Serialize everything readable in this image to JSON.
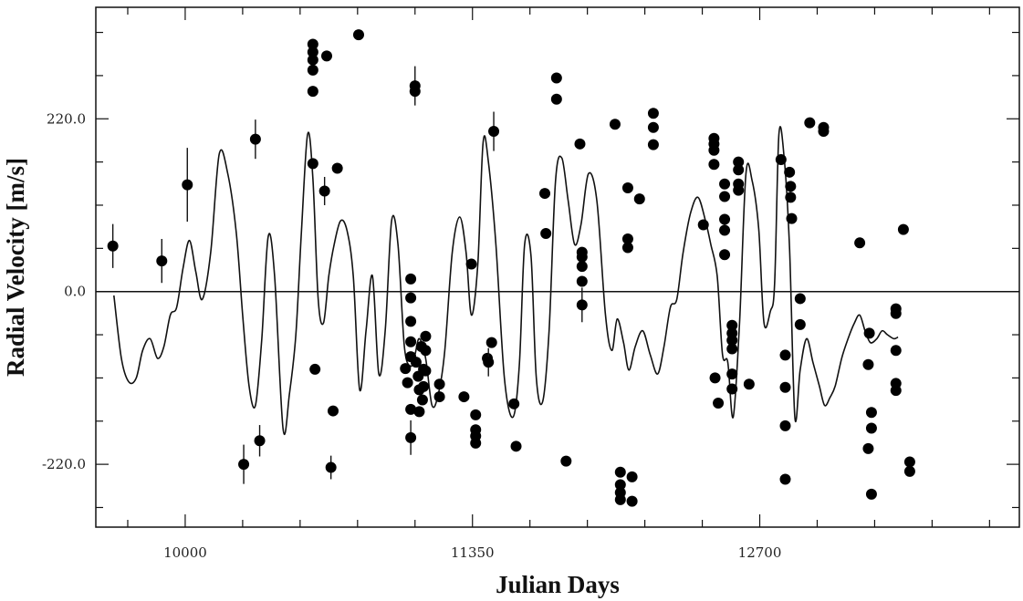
{
  "chart_data": {
    "type": "scatter",
    "title": "",
    "xlabel": "Julian Days",
    "ylabel": "Radial Velocity [m/s]",
    "xlim": [
      9580,
      13920
    ],
    "ylim": [
      -300,
      362
    ],
    "x_ticks": [
      10000,
      11350,
      12700
    ],
    "x_tick_labels": [
      "10000",
      "11350",
      "12700"
    ],
    "y_ticks": [
      220,
      0,
      -220
    ],
    "y_tick_labels": [
      "220.0",
      "0.0",
      "-220.0"
    ],
    "zero_line": 0,
    "grid": false,
    "points": [
      {
        "x": 9660,
        "y": 58,
        "err": 28
      },
      {
        "x": 9890,
        "y": 39,
        "err": 28
      },
      {
        "x": 10010,
        "y": 136,
        "err": 47
      },
      {
        "x": 10275,
        "y": -220,
        "err": 25
      },
      {
        "x": 10330,
        "y": 194,
        "err": 25
      },
      {
        "x": 10350,
        "y": -190,
        "err": 20
      },
      {
        "x": 10600,
        "y": 315
      },
      {
        "x": 10600,
        "y": 305
      },
      {
        "x": 10600,
        "y": 295
      },
      {
        "x": 10600,
        "y": 282
      },
      {
        "x": 10600,
        "y": 255
      },
      {
        "x": 10600,
        "y": 163
      },
      {
        "x": 10610,
        "y": -99
      },
      {
        "x": 10655,
        "y": 128,
        "err": 18
      },
      {
        "x": 10665,
        "y": 300
      },
      {
        "x": 10685,
        "y": -224,
        "err": 15
      },
      {
        "x": 10695,
        "y": -152
      },
      {
        "x": 10715,
        "y": 157
      },
      {
        "x": 10815,
        "y": 327
      },
      {
        "x": 11035,
        "y": -98
      },
      {
        "x": 11045,
        "y": -116
      },
      {
        "x": 11060,
        "y": 16
      },
      {
        "x": 11060,
        "y": -8
      },
      {
        "x": 11060,
        "y": -38
      },
      {
        "x": 11060,
        "y": -64
      },
      {
        "x": 11060,
        "y": -83
      },
      {
        "x": 11060,
        "y": -150
      },
      {
        "x": 11060,
        "y": -186,
        "err": 22
      },
      {
        "x": 11080,
        "y": 262,
        "err": 25
      },
      {
        "x": 11080,
        "y": 255
      },
      {
        "x": 11085,
        "y": -90
      },
      {
        "x": 11095,
        "y": -108
      },
      {
        "x": 11100,
        "y": -125
      },
      {
        "x": 11100,
        "y": -153
      },
      {
        "x": 11110,
        "y": -70
      },
      {
        "x": 11115,
        "y": -138
      },
      {
        "x": 11120,
        "y": -99
      },
      {
        "x": 11120,
        "y": -121
      },
      {
        "x": 11130,
        "y": -57
      },
      {
        "x": 11130,
        "y": -75
      },
      {
        "x": 11130,
        "y": -101
      },
      {
        "x": 11195,
        "y": -118
      },
      {
        "x": 11195,
        "y": -134
      },
      {
        "x": 11310,
        "y": -134
      },
      {
        "x": 11345,
        "y": 35
      },
      {
        "x": 11365,
        "y": -157
      },
      {
        "x": 11365,
        "y": -176
      },
      {
        "x": 11365,
        "y": -184
      },
      {
        "x": 11365,
        "y": -193
      },
      {
        "x": 11420,
        "y": -85
      },
      {
        "x": 11425,
        "y": -90,
        "err": 18
      },
      {
        "x": 11440,
        "y": -65
      },
      {
        "x": 11450,
        "y": 204,
        "err": 25
      },
      {
        "x": 11545,
        "y": -143
      },
      {
        "x": 11555,
        "y": -197
      },
      {
        "x": 11690,
        "y": 125
      },
      {
        "x": 11695,
        "y": 74
      },
      {
        "x": 11745,
        "y": 272
      },
      {
        "x": 11745,
        "y": 245
      },
      {
        "x": 11790,
        "y": -216
      },
      {
        "x": 11855,
        "y": 188
      },
      {
        "x": 11865,
        "y": 50
      },
      {
        "x": 11865,
        "y": 44
      },
      {
        "x": 11865,
        "y": 32
      },
      {
        "x": 11865,
        "y": 13
      },
      {
        "x": 11865,
        "y": -17,
        "err": 22
      },
      {
        "x": 12020,
        "y": 213
      },
      {
        "x": 12045,
        "y": -230
      },
      {
        "x": 12045,
        "y": -246
      },
      {
        "x": 12045,
        "y": -256
      },
      {
        "x": 12045,
        "y": -265
      },
      {
        "x": 12080,
        "y": 132
      },
      {
        "x": 12080,
        "y": 67
      },
      {
        "x": 12080,
        "y": 56
      },
      {
        "x": 12100,
        "y": -236
      },
      {
        "x": 12100,
        "y": -267
      },
      {
        "x": 12135,
        "y": 118
      },
      {
        "x": 12200,
        "y": 227
      },
      {
        "x": 12200,
        "y": 209
      },
      {
        "x": 12200,
        "y": 187
      },
      {
        "x": 12435,
        "y": 85
      },
      {
        "x": 12485,
        "y": 195
      },
      {
        "x": 12485,
        "y": 188
      },
      {
        "x": 12485,
        "y": 180
      },
      {
        "x": 12485,
        "y": 162
      },
      {
        "x": 12490,
        "y": -110
      },
      {
        "x": 12505,
        "y": -142
      },
      {
        "x": 12535,
        "y": 137
      },
      {
        "x": 12535,
        "y": 121
      },
      {
        "x": 12535,
        "y": 92
      },
      {
        "x": 12535,
        "y": 78
      },
      {
        "x": 12535,
        "y": 47
      },
      {
        "x": 12570,
        "y": -43
      },
      {
        "x": 12570,
        "y": -53
      },
      {
        "x": 12570,
        "y": -62
      },
      {
        "x": 12570,
        "y": -73
      },
      {
        "x": 12570,
        "y": -105
      },
      {
        "x": 12570,
        "y": -124
      },
      {
        "x": 12600,
        "y": 165
      },
      {
        "x": 12600,
        "y": 155
      },
      {
        "x": 12600,
        "y": 137
      },
      {
        "x": 12600,
        "y": 129
      },
      {
        "x": 12650,
        "y": -118
      },
      {
        "x": 12800,
        "y": 168
      },
      {
        "x": 12820,
        "y": -81
      },
      {
        "x": 12820,
        "y": -122
      },
      {
        "x": 12820,
        "y": -171
      },
      {
        "x": 12820,
        "y": -239
      },
      {
        "x": 12840,
        "y": 152
      },
      {
        "x": 12845,
        "y": 134
      },
      {
        "x": 12845,
        "y": 120
      },
      {
        "x": 12850,
        "y": 93
      },
      {
        "x": 12890,
        "y": -9
      },
      {
        "x": 12890,
        "y": -42
      },
      {
        "x": 12935,
        "y": 215
      },
      {
        "x": 13000,
        "y": 209
      },
      {
        "x": 13000,
        "y": 204
      },
      {
        "x": 13170,
        "y": 62
      },
      {
        "x": 13210,
        "y": -93
      },
      {
        "x": 13210,
        "y": -200
      },
      {
        "x": 13215,
        "y": -53
      },
      {
        "x": 13225,
        "y": -154
      },
      {
        "x": 13225,
        "y": -174
      },
      {
        "x": 13225,
        "y": -258
      },
      {
        "x": 13340,
        "y": -22
      },
      {
        "x": 13340,
        "y": -28
      },
      {
        "x": 13340,
        "y": -75
      },
      {
        "x": 13340,
        "y": -117
      },
      {
        "x": 13340,
        "y": -126
      },
      {
        "x": 13375,
        "y": 79
      },
      {
        "x": 13405,
        "y": -217
      },
      {
        "x": 13405,
        "y": -229
      }
    ],
    "model_curve": {
      "x": [
        9665,
        9700,
        9735,
        9770,
        9800,
        9835,
        9870,
        9900,
        9930,
        9960,
        9990,
        10020,
        10050,
        10080,
        10120,
        10160,
        10200,
        10240,
        10270,
        10300,
        10330,
        10360,
        10390,
        10420,
        10460,
        10490,
        10520,
        10545,
        10575,
        10600,
        10625,
        10650,
        10675,
        10700,
        10730,
        10760,
        10790,
        10820,
        10850,
        10880,
        10910,
        10940,
        10970,
        11000,
        11030,
        11060,
        11080,
        11100,
        11130,
        11160,
        11190,
        11220,
        11255,
        11290,
        11320,
        11345,
        11375,
        11400,
        11425,
        11460,
        11500,
        11540,
        11570,
        11595,
        11625,
        11650,
        11680,
        11710,
        11740,
        11770,
        11800,
        11830,
        11860,
        11895,
        11935,
        11975,
        12005,
        12030,
        12060,
        12085,
        12115,
        12150,
        12185,
        12220,
        12250,
        12280,
        12310,
        12340,
        12375,
        12410,
        12445,
        12470,
        12500,
        12525,
        12550,
        12575,
        12605,
        12635,
        12665,
        12695,
        12720,
        12750,
        12770,
        12790,
        12815,
        12840,
        12865,
        12890,
        12920,
        12950,
        12980,
        13005,
        13030,
        13055,
        13085,
        13115,
        13145,
        13170,
        13195,
        13220,
        13250,
        13275,
        13300,
        13330,
        13350
      ],
      "y": [
        -5,
        -85,
        -115,
        -110,
        -75,
        -60,
        -85,
        -70,
        -30,
        -20,
        30,
        65,
        25,
        -10,
        50,
        175,
        150,
        75,
        -30,
        -120,
        -145,
        -60,
        70,
        20,
        -175,
        -130,
        -55,
        70,
        200,
        145,
        -10,
        -40,
        20,
        60,
        90,
        78,
        20,
        -125,
        -50,
        20,
        -105,
        -50,
        90,
        60,
        -70,
        -95,
        -80,
        -60,
        -85,
        -145,
        -130,
        -75,
        50,
        95,
        50,
        -30,
        35,
        190,
        165,
        60,
        -110,
        -160,
        -95,
        60,
        45,
        -110,
        -140,
        -50,
        140,
        170,
        115,
        60,
        85,
        150,
        115,
        -30,
        -75,
        -35,
        -65,
        -100,
        -70,
        -50,
        -80,
        -105,
        -70,
        -20,
        -10,
        50,
        100,
        120,
        90,
        60,
        20,
        -80,
        -90,
        -160,
        -40,
        150,
        140,
        80,
        -40,
        -25,
        10,
        200,
        170,
        55,
        -160,
        -100,
        -60,
        -90,
        -120,
        -145,
        -135,
        -120,
        -85,
        -60,
        -40,
        -30,
        -50,
        -65,
        -60,
        -50,
        -55,
        -60,
        -58
      ]
    }
  }
}
